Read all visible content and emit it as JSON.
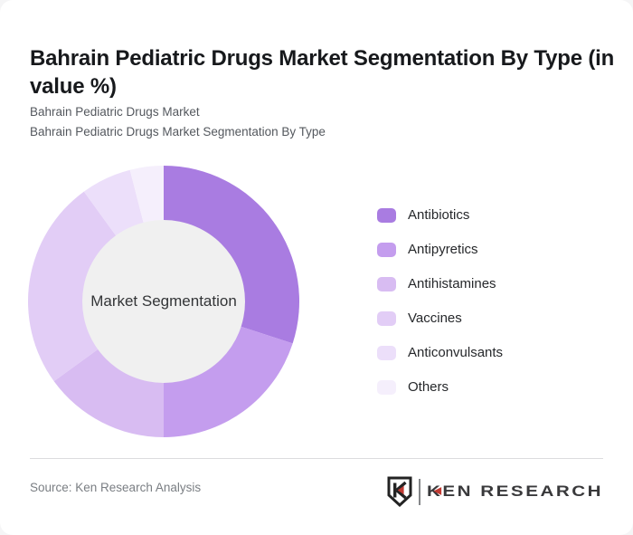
{
  "page": {
    "background": "#f5f5f6",
    "card_background": "#ffffff"
  },
  "header": {
    "title": "Bahrain Pediatric Drugs Market Segmentation By Type (in value %)",
    "subtitles": [
      "Bahrain Pediatric Drugs Market",
      "Bahrain Pediatric Drugs Market Segmentation By Type"
    ]
  },
  "chart_data": {
    "type": "pie",
    "variant": "donut",
    "title": "Bahrain Pediatric Drugs Market Segmentation By Type (in value %)",
    "unit": "value %",
    "center_label": "Market Segmentation",
    "categories": [
      "Antibiotics",
      "Antipyretics",
      "Antihistamines",
      "Vaccines",
      "Anticonvulsants",
      "Others"
    ],
    "values": [
      30,
      20,
      15,
      25,
      6,
      4
    ],
    "colors": [
      "#a97ce1",
      "#c49dee",
      "#d8bcf2",
      "#e2cdf6",
      "#ecdffa",
      "#f5effc"
    ],
    "start_angle_deg": 0,
    "direction": "clockwise",
    "inner_radius_ratio": 0.6,
    "center_fill": "#f0f0f0",
    "legend_position": "right",
    "legend_entries": [
      "Antibiotics",
      "Antipyretics",
      "Antihistamines",
      "Vaccines",
      "Anticonvulsants",
      "Others"
    ]
  },
  "footer": {
    "source": "Source: Ken Research Analysis",
    "logo": {
      "monogram": "K",
      "wordmark_first_letter": "K",
      "wordmark_rest": "EN RESEARCH",
      "accent_color": "#c13a32",
      "ink_color": "#39393b"
    }
  }
}
